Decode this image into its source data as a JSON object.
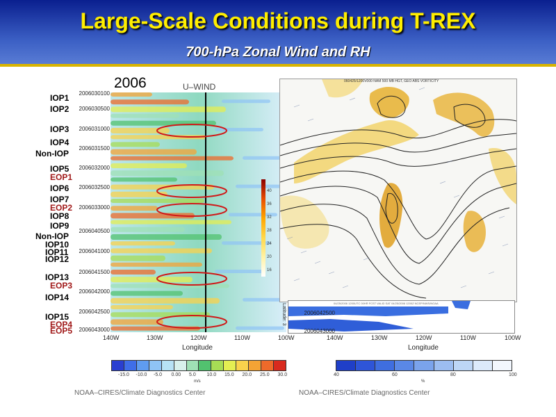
{
  "title": "Large-Scale Conditions during T-REX",
  "subtitle": "700-hPa Zonal Wind and RH",
  "year": "2006",
  "left_panel_title": "U–WIND",
  "map_header": "060425/1200V000 NAM 500 MB HGT, GEO ABS VORTICITY",
  "lower_header": "04/25/2006 1200UTC 00HR FCST VALID SAT 04/25/2006 1200Z  NCEP/NWS/NOAA",
  "lower_side": "Latitude: 3",
  "iop_labels": [
    {
      "text": "IOP1",
      "color": "black"
    },
    {
      "text": "IOP2",
      "color": "black"
    },
    {
      "text": "IOP3",
      "color": "black"
    },
    {
      "text": "IOP4",
      "color": "black"
    },
    {
      "text": "Non-IOP",
      "color": "black"
    },
    {
      "text": "IOP5",
      "color": "black"
    },
    {
      "text": "EOP1",
      "color": "red"
    },
    {
      "text": "IOP6",
      "color": "black"
    },
    {
      "text": "IOP7",
      "color": "black"
    },
    {
      "text": "EOP2",
      "color": "red"
    },
    {
      "text": "IOP8",
      "color": "black"
    },
    {
      "text": "IOP9",
      "color": "black"
    },
    {
      "text": "Non-IOP",
      "color": "black"
    },
    {
      "text": "IOP10",
      "color": "black"
    },
    {
      "text": "IOP11",
      "color": "black"
    },
    {
      "text": "IOP12",
      "color": "black"
    },
    {
      "text": "IOP13",
      "color": "black"
    },
    {
      "text": "EOP3",
      "color": "red"
    },
    {
      "text": "IOP14",
      "color": "black"
    },
    {
      "text": "IOP15",
      "color": "black"
    },
    {
      "text": "EOP4",
      "color": "red"
    },
    {
      "text": "EOP5",
      "color": "red"
    }
  ],
  "dates": [
    "2006030100",
    "2006030500",
    "2006031000",
    "2006031500",
    "2006032000",
    "2006032500",
    "2006033000",
    "2006040500",
    "2006041000",
    "2006041500",
    "2006042000",
    "2006042500",
    "2006043000"
  ],
  "lower_dates": [
    "2006042500",
    "2006043000"
  ],
  "lon_ticks": [
    "140W",
    "130W",
    "120W",
    "110W",
    "100W"
  ],
  "xlabel": "Longitude",
  "wind_colorbar": {
    "ticks": [
      "-15.0",
      "-10.0",
      "-5.0",
      "0.00",
      "5.0",
      "10.0",
      "15.0",
      "20.0",
      "25.0",
      "30.0"
    ],
    "unit": "m/s"
  },
  "rh_colorbar": {
    "ticks": [
      "40",
      "60",
      "80",
      "100"
    ],
    "unit": "%"
  },
  "side_colorbar_ticks": [
    "40",
    "36",
    "32",
    "28",
    "24",
    "20",
    "16"
  ],
  "source_left": "NOAA–CIRES/Climate Diagnostics Center",
  "source_right": "NOAA–CIRES/Climate Diagnostics Center",
  "chart_data": [
    {
      "type": "heatmap",
      "title": "U–WIND",
      "xlabel": "Longitude",
      "x_ticks": [
        "140W",
        "130W",
        "120W",
        "110W",
        "100W"
      ],
      "y_ticks": [
        "2006030100",
        "2006030500",
        "2006031000",
        "2006031500",
        "2006032000",
        "2006032500",
        "2006033000",
        "2006040500",
        "2006041000",
        "2006041500",
        "2006042000",
        "2006042500",
        "2006043000"
      ],
      "colorbar": {
        "range": [
          -15,
          30
        ],
        "unit": "m/s"
      },
      "reference_longitude": "118W",
      "highlighted_periods": [
        "2006031000",
        "2006032500",
        "2006033000",
        "2006041500",
        "2006042800"
      ]
    },
    {
      "type": "heatmap",
      "xlabel": "Longitude",
      "x_ticks": [
        "140W",
        "130W",
        "120W",
        "110W",
        "100W"
      ],
      "y_ticks": [
        "2006042500",
        "2006043000"
      ],
      "colorbar": {
        "range": [
          40,
          100
        ],
        "unit": "%"
      }
    }
  ]
}
